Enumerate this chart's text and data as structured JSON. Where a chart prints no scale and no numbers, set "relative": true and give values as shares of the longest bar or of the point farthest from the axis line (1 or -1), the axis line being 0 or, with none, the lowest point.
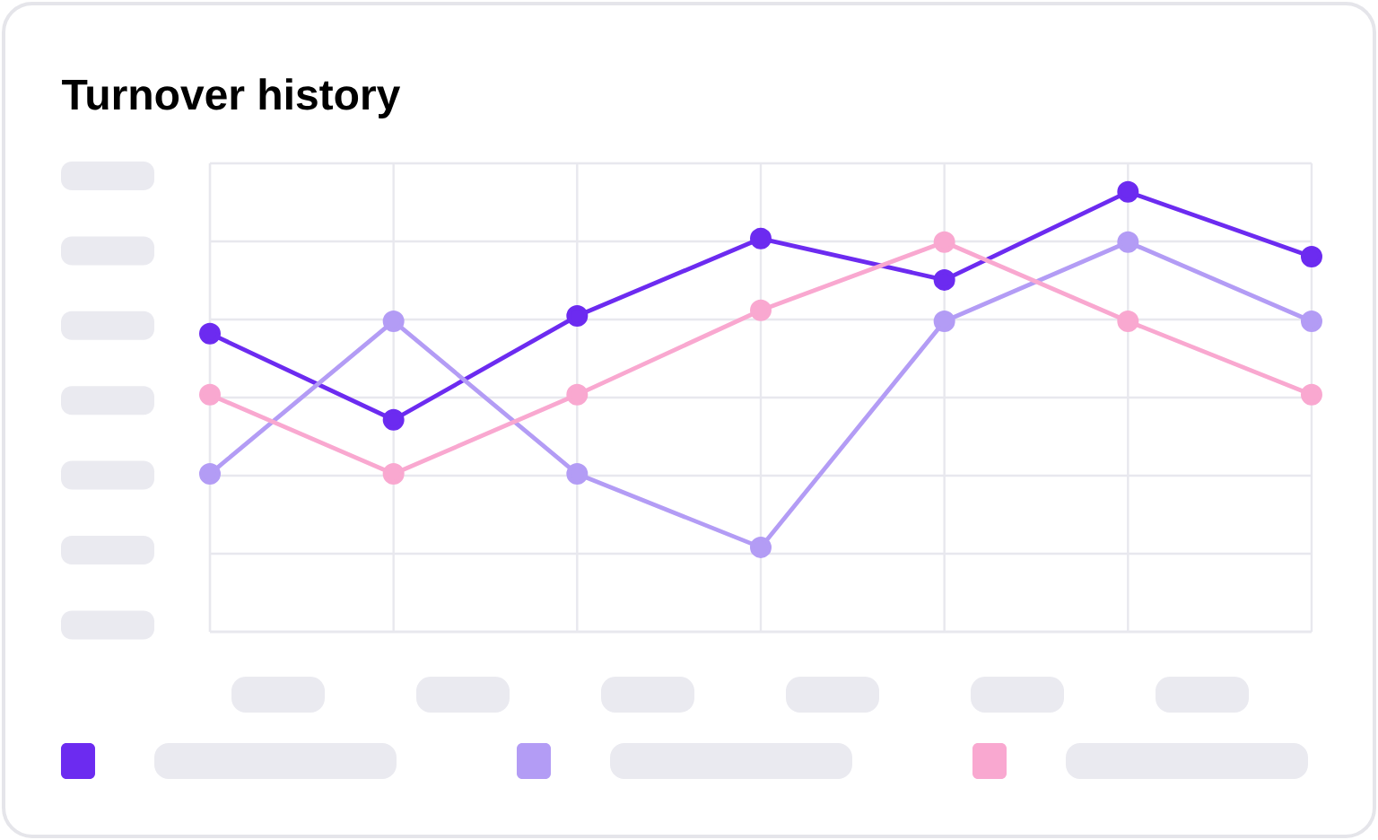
{
  "chart_data": {
    "type": "line",
    "title": "Turnover history",
    "relative": true,
    "categories": [
      null,
      null,
      null,
      null,
      null,
      null,
      null
    ],
    "series": [
      {
        "color": "#6c2bf0",
        "values": [
          0.678,
          0.482,
          0.718,
          0.894,
          0.8,
          1,
          0.853
        ]
      },
      {
        "color": "#b39cf5",
        "values": [
          0.359,
          0.706,
          0.359,
          0.192,
          0.706,
          0.886,
          0.706
        ]
      },
      {
        "color": "#f9a8d0",
        "values": [
          0.539,
          0.359,
          0.539,
          0.731,
          0.886,
          0.706,
          0.539
        ]
      }
    ],
    "grid": true,
    "marker": "circle",
    "line_style": "solid"
  }
}
